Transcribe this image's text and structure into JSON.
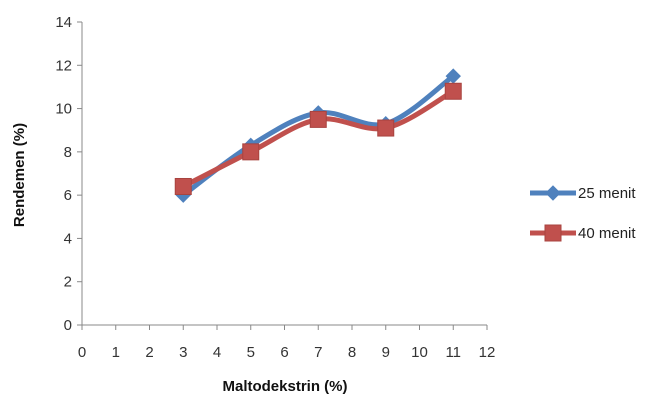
{
  "chart_data": {
    "type": "line",
    "xlabel": "Maltodekstrin (%)",
    "ylabel": "Rendemen (%)",
    "xlim": [
      0,
      12
    ],
    "ylim": [
      0,
      14
    ],
    "xticks": [
      "0",
      "1",
      "2",
      "3",
      "4",
      "5",
      "6",
      "7",
      "8",
      "9",
      "10",
      "11",
      "12"
    ],
    "yticks": [
      "0",
      "2",
      "4",
      "6",
      "8",
      "10",
      "12",
      "14"
    ],
    "grid": false,
    "legend_position": "right",
    "smooth": true,
    "series": [
      {
        "name": "25 menit",
        "marker": "diamond",
        "color": "#4f81bd",
        "x": [
          3,
          5,
          7,
          9,
          11
        ],
        "y": [
          6.0,
          8.3,
          9.8,
          9.3,
          11.5
        ]
      },
      {
        "name": "40 menit",
        "marker": "square",
        "color": "#c0504d",
        "x": [
          3,
          5,
          7,
          9,
          11
        ],
        "y": [
          6.4,
          8.0,
          9.5,
          9.1,
          10.8
        ]
      }
    ]
  }
}
